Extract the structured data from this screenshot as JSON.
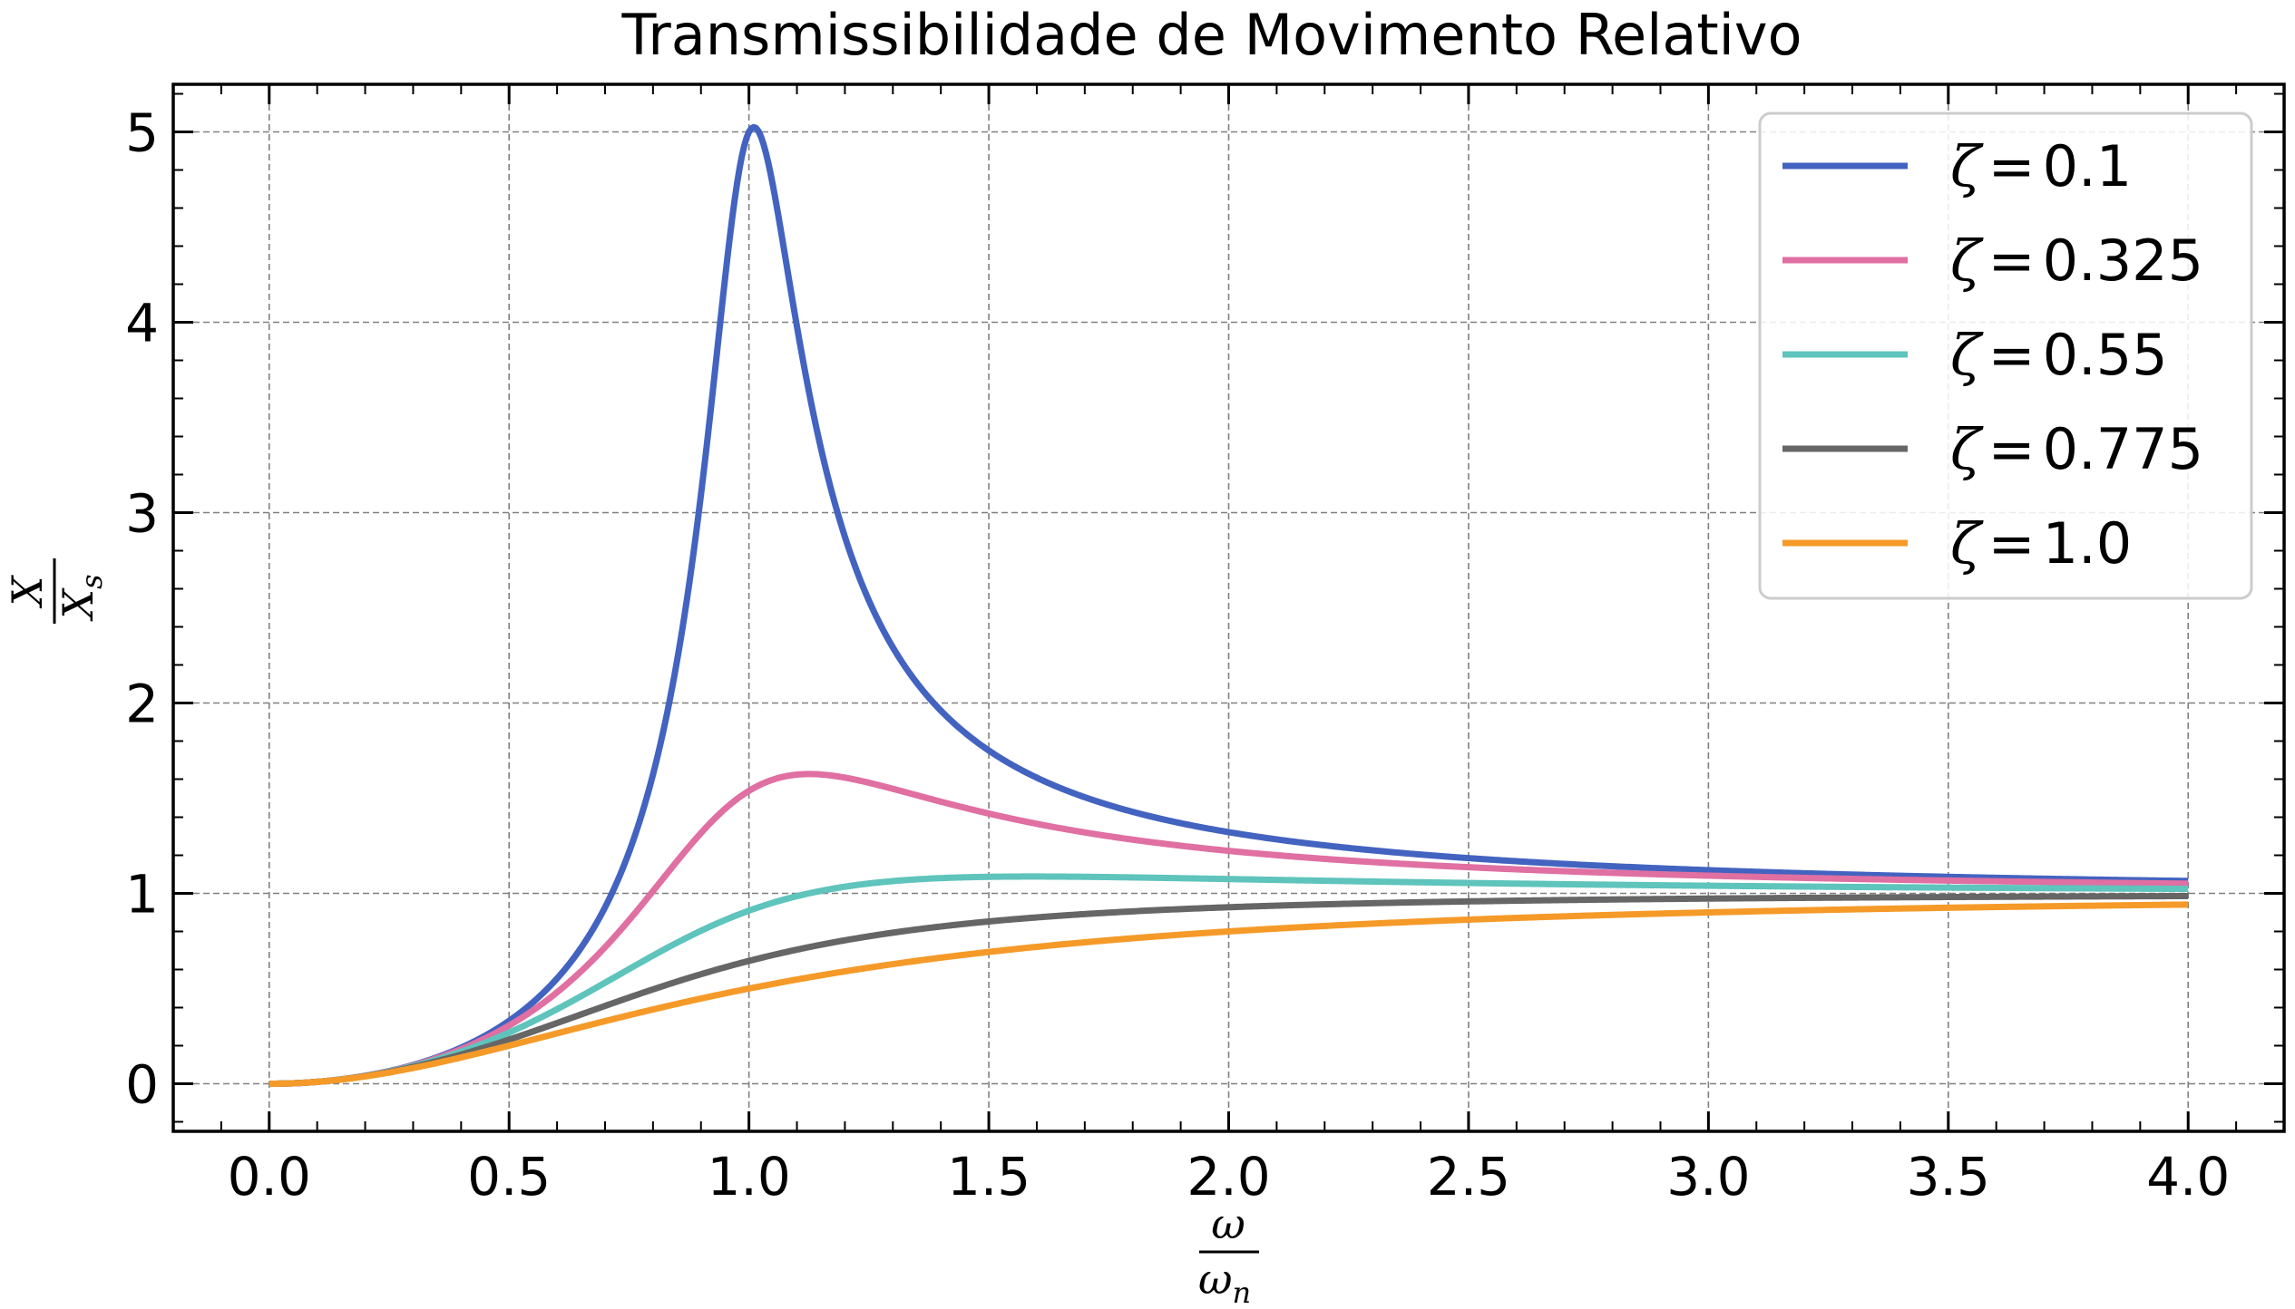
{
  "chart_data": {
    "type": "line",
    "title": "Transmissibilidade de Movimento Relativo",
    "xlabel": {
      "num": "ω",
      "den": "ω",
      "den_sub": "n"
    },
    "ylabel": {
      "num": "X",
      "den": "X",
      "den_sub": "s"
    },
    "xlim": [
      -0.2,
      4.2
    ],
    "ylim": [
      -0.25,
      5.25
    ],
    "xticks": [
      "0.0",
      "0.5",
      "1.0",
      "1.5",
      "2.0",
      "2.5",
      "3.0",
      "3.5",
      "4.0"
    ],
    "yticks": [
      "0",
      "1",
      "2",
      "3",
      "4",
      "5"
    ],
    "grid": true,
    "legend": "top-right",
    "x_range": [
      0,
      4
    ],
    "formula": "r^2 / sqrt((1 - r^2)^2 + (2*zeta*r)^2)",
    "series": [
      {
        "name": "ζ = 0.1",
        "symbol": "ζ",
        "value_label": "0.1",
        "zeta": 0.1,
        "color": "#4363c0"
      },
      {
        "name": "ζ = 0.325",
        "symbol": "ζ",
        "value_label": "0.325",
        "zeta": 0.325,
        "color": "#e06fa2"
      },
      {
        "name": "ζ = 0.55",
        "symbol": "ζ",
        "value_label": "0.55",
        "zeta": 0.55,
        "color": "#5ec4bc"
      },
      {
        "name": "ζ = 0.775",
        "symbol": "ζ",
        "value_label": "0.775",
        "zeta": 0.775,
        "color": "#666666"
      },
      {
        "name": "ζ = 1.0",
        "symbol": "ζ",
        "value_label": "1.0",
        "zeta": 1.0,
        "color": "#f59a28"
      }
    ]
  }
}
